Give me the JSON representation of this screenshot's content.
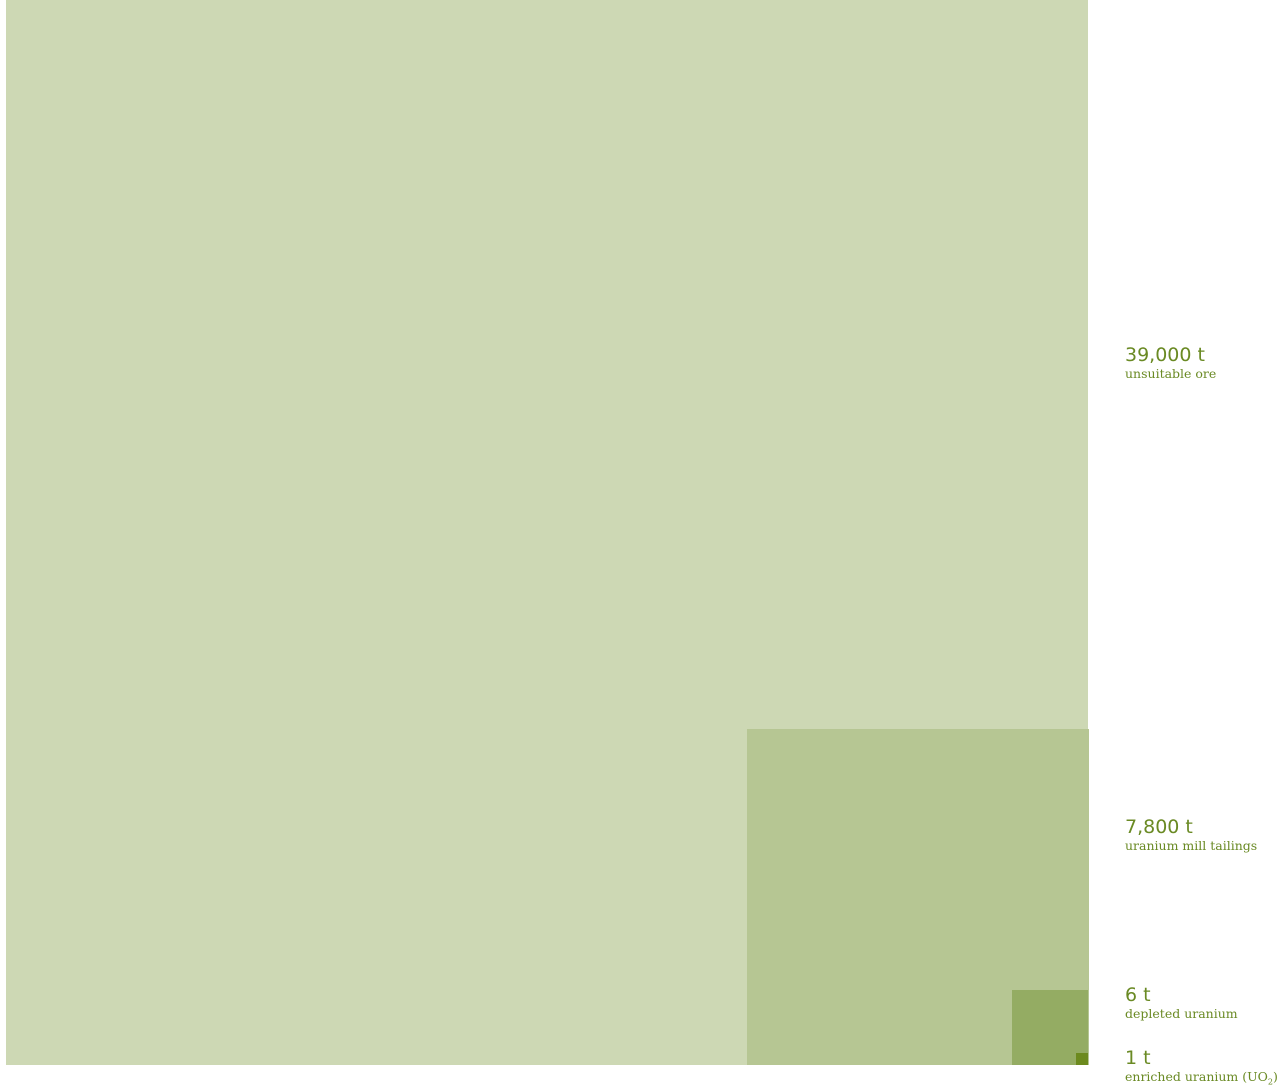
{
  "colors": {
    "ore": "#cdd8b4",
    "tailings": "#b6c693",
    "depleted": "#94ac63",
    "enriched": "#6c8a1e",
    "text": "#6a8a24"
  },
  "items": [
    {
      "amount": "39,000 t",
      "label": "unsuitable ore",
      "tonnes": 39000
    },
    {
      "amount": "7,800 t",
      "label": "uranium mill tailings",
      "tonnes": 7800
    },
    {
      "amount": "6 t",
      "label": "depleted uranium",
      "tonnes": 6
    },
    {
      "amount": "1 t",
      "label": "enriched uranium (UO",
      "label_sub": "2",
      "label_end": ")",
      "tonnes": 1
    }
  ]
}
